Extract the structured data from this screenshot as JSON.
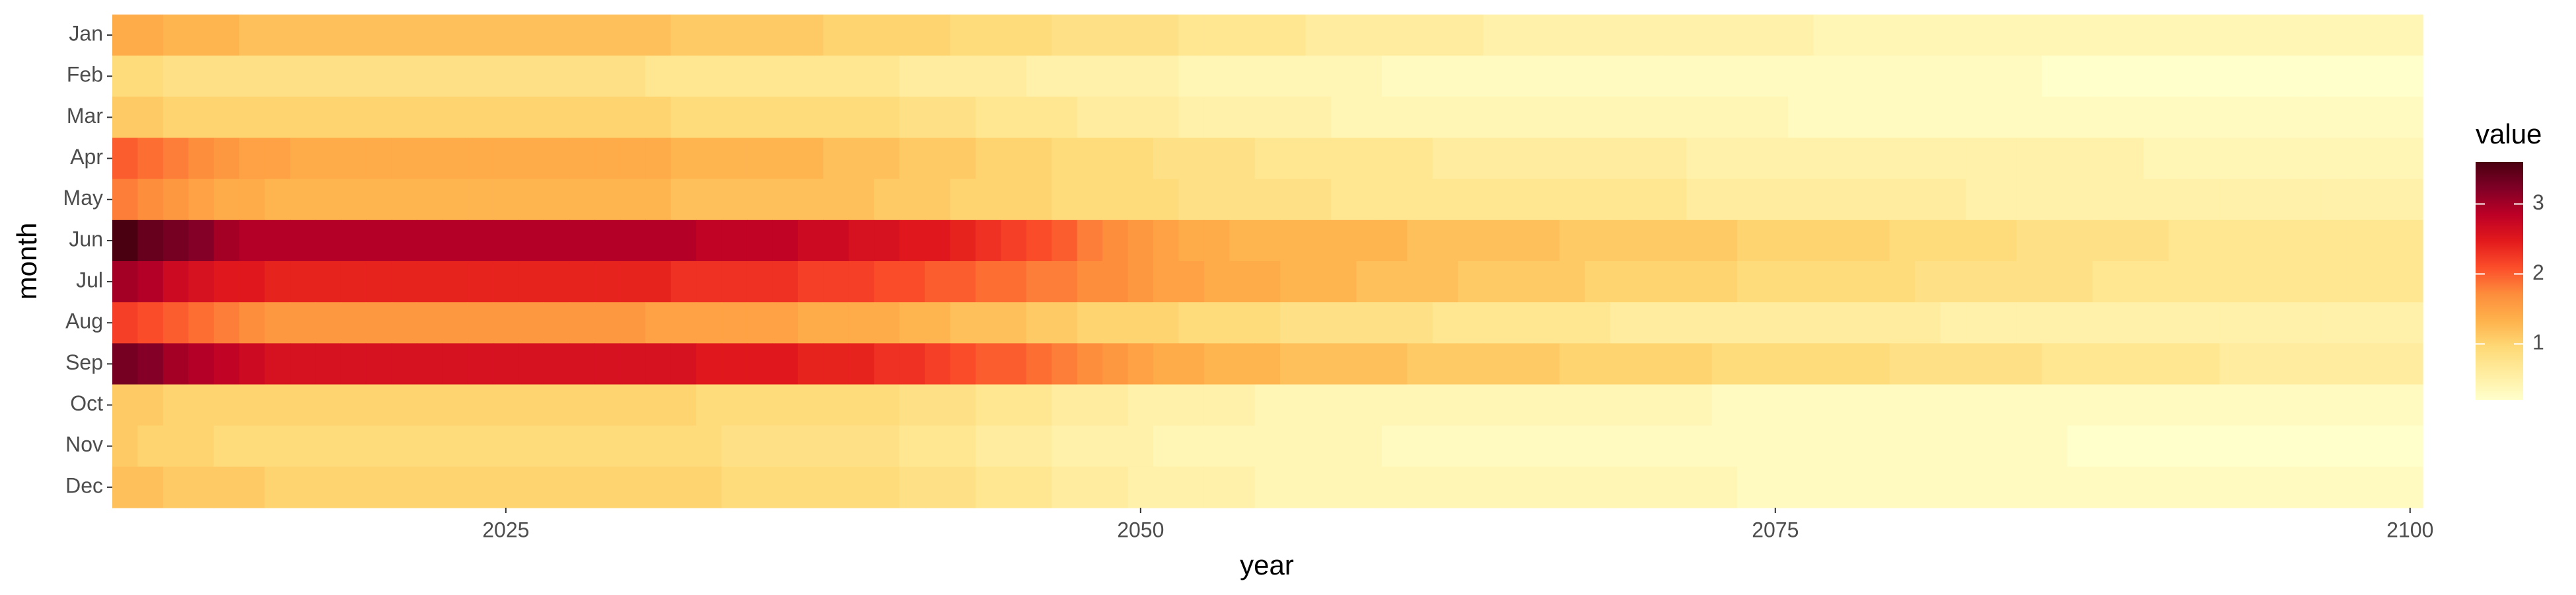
{
  "chart_data": {
    "type": "heatmap",
    "xlabel": "year",
    "ylabel": "month",
    "legend_title": "value",
    "x": [
      2010,
      2011,
      2012,
      2013,
      2014,
      2015,
      2016,
      2017,
      2018,
      2019,
      2020,
      2021,
      2022,
      2023,
      2024,
      2025,
      2026,
      2027,
      2028,
      2029,
      2030,
      2031,
      2032,
      2033,
      2034,
      2035,
      2036,
      2037,
      2038,
      2039,
      2040,
      2041,
      2042,
      2043,
      2044,
      2045,
      2046,
      2047,
      2048,
      2049,
      2050,
      2051,
      2052,
      2053,
      2054,
      2055,
      2056,
      2057,
      2058,
      2059,
      2060,
      2061,
      2062,
      2063,
      2064,
      2065,
      2066,
      2067,
      2068,
      2069,
      2070,
      2071,
      2072,
      2073,
      2074,
      2075,
      2076,
      2077,
      2078,
      2079,
      2080,
      2081,
      2082,
      2083,
      2084,
      2085,
      2086,
      2087,
      2088,
      2089,
      2090,
      2091,
      2092,
      2093,
      2094,
      2095,
      2096,
      2097,
      2098,
      2099,
      2100
    ],
    "categories": [
      "Jan",
      "Feb",
      "Mar",
      "Apr",
      "May",
      "Jun",
      "Jul",
      "Aug",
      "Sep",
      "Oct",
      "Nov",
      "Dec"
    ],
    "values": [
      [
        1.4,
        1.4,
        1.3,
        1.3,
        1.3,
        1.2,
        1.2,
        1.2,
        1.2,
        1.2,
        1.2,
        1.2,
        1.2,
        1.2,
        1.2,
        1.2,
        1.2,
        1.2,
        1.2,
        1.2,
        1.2,
        1.2,
        1.1,
        1.1,
        1.1,
        1.1,
        1.1,
        1.1,
        1.0,
        1.0,
        1.0,
        1.0,
        1.0,
        0.9,
        0.9,
        0.9,
        0.9,
        0.8,
        0.8,
        0.8,
        0.8,
        0.8,
        0.7,
        0.7,
        0.7,
        0.7,
        0.7,
        0.6,
        0.6,
        0.6,
        0.6,
        0.6,
        0.6,
        0.6,
        0.5,
        0.5,
        0.5,
        0.5,
        0.5,
        0.5,
        0.5,
        0.5,
        0.5,
        0.5,
        0.5,
        0.5,
        0.5,
        0.4,
        0.4,
        0.4,
        0.4,
        0.4,
        0.4,
        0.4,
        0.4,
        0.4,
        0.4,
        0.4,
        0.4,
        0.4,
        0.4,
        0.4,
        0.4,
        0.4,
        0.4,
        0.4,
        0.4,
        0.4,
        0.4,
        0.4,
        0.4
      ],
      [
        0.9,
        0.9,
        0.8,
        0.8,
        0.8,
        0.8,
        0.8,
        0.8,
        0.8,
        0.8,
        0.8,
        0.8,
        0.8,
        0.8,
        0.8,
        0.8,
        0.8,
        0.8,
        0.8,
        0.8,
        0.8,
        0.7,
        0.7,
        0.7,
        0.7,
        0.7,
        0.7,
        0.7,
        0.7,
        0.7,
        0.7,
        0.6,
        0.6,
        0.6,
        0.6,
        0.6,
        0.5,
        0.5,
        0.5,
        0.5,
        0.5,
        0.5,
        0.4,
        0.4,
        0.4,
        0.4,
        0.4,
        0.4,
        0.4,
        0.4,
        0.3,
        0.3,
        0.3,
        0.3,
        0.3,
        0.3,
        0.3,
        0.3,
        0.3,
        0.3,
        0.3,
        0.3,
        0.3,
        0.3,
        0.3,
        0.3,
        0.3,
        0.3,
        0.3,
        0.3,
        0.3,
        0.3,
        0.3,
        0.3,
        0.3,
        0.3,
        0.2,
        0.2,
        0.2,
        0.2,
        0.2,
        0.2,
        0.2,
        0.2,
        0.2,
        0.2,
        0.2,
        0.2,
        0.2,
        0.2,
        0.2
      ],
      [
        1.1,
        1.1,
        1.0,
        1.0,
        1.0,
        1.0,
        1.0,
        1.0,
        1.0,
        1.0,
        1.0,
        1.0,
        1.0,
        1.0,
        1.0,
        1.0,
        1.0,
        1.0,
        1.0,
        1.0,
        1.0,
        1.0,
        0.9,
        0.9,
        0.9,
        0.9,
        0.9,
        0.9,
        0.9,
        0.9,
        0.9,
        0.8,
        0.8,
        0.8,
        0.7,
        0.7,
        0.7,
        0.7,
        0.6,
        0.6,
        0.6,
        0.6,
        0.5,
        0.5,
        0.5,
        0.5,
        0.5,
        0.5,
        0.4,
        0.4,
        0.4,
        0.4,
        0.4,
        0.4,
        0.4,
        0.4,
        0.4,
        0.4,
        0.4,
        0.4,
        0.4,
        0.4,
        0.4,
        0.4,
        0.4,
        0.4,
        0.3,
        0.3,
        0.3,
        0.3,
        0.3,
        0.3,
        0.3,
        0.3,
        0.3,
        0.3,
        0.3,
        0.3,
        0.3,
        0.3,
        0.3,
        0.3,
        0.3,
        0.3,
        0.3,
        0.3,
        0.3,
        0.3,
        0.3,
        0.3,
        0.3
      ],
      [
        2.0,
        1.9,
        1.8,
        1.7,
        1.6,
        1.5,
        1.5,
        1.4,
        1.4,
        1.4,
        1.4,
        1.4,
        1.4,
        1.4,
        1.4,
        1.4,
        1.4,
        1.4,
        1.4,
        1.4,
        1.4,
        1.4,
        1.3,
        1.3,
        1.3,
        1.3,
        1.3,
        1.3,
        1.2,
        1.2,
        1.2,
        1.1,
        1.1,
        1.1,
        1.0,
        1.0,
        1.0,
        0.9,
        0.9,
        0.9,
        0.9,
        0.8,
        0.8,
        0.8,
        0.8,
        0.7,
        0.7,
        0.7,
        0.7,
        0.7,
        0.7,
        0.7,
        0.6,
        0.6,
        0.6,
        0.6,
        0.6,
        0.6,
        0.6,
        0.6,
        0.6,
        0.6,
        0.5,
        0.5,
        0.5,
        0.5,
        0.5,
        0.5,
        0.5,
        0.5,
        0.5,
        0.5,
        0.5,
        0.5,
        0.5,
        0.5,
        0.5,
        0.5,
        0.5,
        0.5,
        0.4,
        0.4,
        0.4,
        0.4,
        0.4,
        0.4,
        0.4,
        0.4,
        0.4,
        0.4,
        0.4
      ],
      [
        1.8,
        1.7,
        1.6,
        1.5,
        1.4,
        1.4,
        1.3,
        1.3,
        1.3,
        1.3,
        1.3,
        1.3,
        1.3,
        1.3,
        1.3,
        1.3,
        1.3,
        1.3,
        1.3,
        1.3,
        1.3,
        1.3,
        1.2,
        1.2,
        1.2,
        1.2,
        1.2,
        1.2,
        1.2,
        1.2,
        1.1,
        1.1,
        1.1,
        1.0,
        1.0,
        1.0,
        1.0,
        0.9,
        0.9,
        0.9,
        0.9,
        0.9,
        0.8,
        0.8,
        0.8,
        0.8,
        0.8,
        0.8,
        0.7,
        0.7,
        0.7,
        0.7,
        0.7,
        0.7,
        0.7,
        0.7,
        0.7,
        0.7,
        0.7,
        0.7,
        0.7,
        0.7,
        0.6,
        0.6,
        0.6,
        0.6,
        0.6,
        0.6,
        0.6,
        0.6,
        0.6,
        0.6,
        0.6,
        0.5,
        0.5,
        0.5,
        0.5,
        0.5,
        0.5,
        0.5,
        0.5,
        0.5,
        0.5,
        0.5,
        0.5,
        0.5,
        0.5,
        0.5,
        0.5,
        0.5,
        0.5
      ],
      [
        3.6,
        3.4,
        3.3,
        3.2,
        3.0,
        2.9,
        2.9,
        2.9,
        2.9,
        2.9,
        2.9,
        2.9,
        2.9,
        2.9,
        2.9,
        2.9,
        2.9,
        2.9,
        2.9,
        2.9,
        2.9,
        2.9,
        2.9,
        2.8,
        2.8,
        2.8,
        2.8,
        2.7,
        2.7,
        2.6,
        2.6,
        2.5,
        2.5,
        2.4,
        2.3,
        2.2,
        2.1,
        2.0,
        1.8,
        1.7,
        1.6,
        1.5,
        1.4,
        1.4,
        1.3,
        1.3,
        1.3,
        1.3,
        1.3,
        1.3,
        1.3,
        1.2,
        1.2,
        1.2,
        1.2,
        1.2,
        1.2,
        1.1,
        1.1,
        1.1,
        1.1,
        1.1,
        1.1,
        1.1,
        1.0,
        1.0,
        1.0,
        1.0,
        1.0,
        1.0,
        0.9,
        0.9,
        0.9,
        0.9,
        0.9,
        0.8,
        0.8,
        0.8,
        0.8,
        0.8,
        0.8,
        0.7,
        0.7,
        0.7,
        0.7,
        0.7,
        0.7,
        0.7,
        0.7,
        0.7,
        0.7
      ],
      [
        3.0,
        2.9,
        2.7,
        2.6,
        2.5,
        2.5,
        2.4,
        2.4,
        2.4,
        2.4,
        2.4,
        2.4,
        2.4,
        2.4,
        2.4,
        2.4,
        2.4,
        2.4,
        2.4,
        2.4,
        2.4,
        2.4,
        2.3,
        2.3,
        2.3,
        2.3,
        2.3,
        2.2,
        2.2,
        2.2,
        2.1,
        2.1,
        2.0,
        2.0,
        1.9,
        1.9,
        1.8,
        1.8,
        1.7,
        1.7,
        1.6,
        1.5,
        1.5,
        1.4,
        1.4,
        1.4,
        1.3,
        1.3,
        1.3,
        1.2,
        1.2,
        1.2,
        1.2,
        1.1,
        1.1,
        1.1,
        1.1,
        1.1,
        1.0,
        1.0,
        1.0,
        1.0,
        1.0,
        1.0,
        0.9,
        0.9,
        0.9,
        0.9,
        0.9,
        0.9,
        0.9,
        0.8,
        0.8,
        0.8,
        0.8,
        0.8,
        0.8,
        0.8,
        0.7,
        0.7,
        0.7,
        0.7,
        0.7,
        0.7,
        0.7,
        0.7,
        0.7,
        0.7,
        0.7,
        0.7,
        0.7
      ],
      [
        2.2,
        2.1,
        2.0,
        1.9,
        1.8,
        1.7,
        1.6,
        1.6,
        1.6,
        1.6,
        1.6,
        1.6,
        1.6,
        1.6,
        1.6,
        1.6,
        1.6,
        1.6,
        1.6,
        1.6,
        1.6,
        1.5,
        1.5,
        1.5,
        1.5,
        1.5,
        1.5,
        1.4,
        1.4,
        1.4,
        1.4,
        1.3,
        1.3,
        1.2,
        1.2,
        1.2,
        1.1,
        1.1,
        1.0,
        1.0,
        1.0,
        1.0,
        0.9,
        0.9,
        0.9,
        0.9,
        0.8,
        0.8,
        0.8,
        0.8,
        0.8,
        0.8,
        0.7,
        0.7,
        0.7,
        0.7,
        0.7,
        0.7,
        0.7,
        0.6,
        0.6,
        0.6,
        0.6,
        0.6,
        0.6,
        0.6,
        0.6,
        0.6,
        0.6,
        0.6,
        0.6,
        0.6,
        0.5,
        0.5,
        0.5,
        0.5,
        0.5,
        0.5,
        0.5,
        0.5,
        0.5,
        0.5,
        0.5,
        0.5,
        0.5,
        0.5,
        0.5,
        0.5,
        0.5,
        0.5,
        0.5
      ],
      [
        3.3,
        3.2,
        3.0,
        2.9,
        2.8,
        2.7,
        2.6,
        2.6,
        2.6,
        2.6,
        2.6,
        2.6,
        2.6,
        2.6,
        2.6,
        2.6,
        2.6,
        2.6,
        2.6,
        2.6,
        2.6,
        2.6,
        2.6,
        2.5,
        2.5,
        2.5,
        2.5,
        2.4,
        2.4,
        2.4,
        2.3,
        2.3,
        2.2,
        2.1,
        2.0,
        2.0,
        1.9,
        1.8,
        1.7,
        1.6,
        1.5,
        1.4,
        1.4,
        1.3,
        1.3,
        1.3,
        1.2,
        1.2,
        1.2,
        1.2,
        1.2,
        1.1,
        1.1,
        1.1,
        1.1,
        1.1,
        1.1,
        1.0,
        1.0,
        1.0,
        1.0,
        1.0,
        1.0,
        0.9,
        0.9,
        0.9,
        0.9,
        0.9,
        0.9,
        0.9,
        0.8,
        0.8,
        0.8,
        0.8,
        0.8,
        0.8,
        0.7,
        0.7,
        0.7,
        0.7,
        0.7,
        0.7,
        0.7,
        0.6,
        0.6,
        0.6,
        0.6,
        0.6,
        0.6,
        0.6,
        0.6
      ],
      [
        1.1,
        1.1,
        1.0,
        1.0,
        1.0,
        1.0,
        1.0,
        1.0,
        1.0,
        1.0,
        1.0,
        1.0,
        1.0,
        1.0,
        1.0,
        1.0,
        1.0,
        1.0,
        1.0,
        1.0,
        1.0,
        1.0,
        1.0,
        0.9,
        0.9,
        0.9,
        0.9,
        0.9,
        0.9,
        0.9,
        0.9,
        0.8,
        0.8,
        0.8,
        0.7,
        0.7,
        0.7,
        0.6,
        0.6,
        0.6,
        0.5,
        0.5,
        0.5,
        0.5,
        0.5,
        0.4,
        0.4,
        0.4,
        0.4,
        0.4,
        0.4,
        0.4,
        0.4,
        0.4,
        0.4,
        0.4,
        0.4,
        0.4,
        0.4,
        0.4,
        0.4,
        0.4,
        0.4,
        0.3,
        0.3,
        0.3,
        0.3,
        0.3,
        0.3,
        0.3,
        0.3,
        0.3,
        0.3,
        0.3,
        0.3,
        0.3,
        0.3,
        0.3,
        0.3,
        0.3,
        0.3,
        0.3,
        0.3,
        0.3,
        0.3,
        0.3,
        0.3,
        0.3,
        0.3,
        0.3,
        0.3
      ],
      [
        1.1,
        1.0,
        1.0,
        1.0,
        0.9,
        0.9,
        0.9,
        0.9,
        0.9,
        0.9,
        0.9,
        0.9,
        0.9,
        0.9,
        0.9,
        0.9,
        0.9,
        0.9,
        0.9,
        0.9,
        0.9,
        0.9,
        0.9,
        0.9,
        0.8,
        0.8,
        0.8,
        0.8,
        0.8,
        0.8,
        0.8,
        0.7,
        0.7,
        0.7,
        0.6,
        0.6,
        0.6,
        0.5,
        0.5,
        0.5,
        0.5,
        0.4,
        0.4,
        0.4,
        0.4,
        0.4,
        0.4,
        0.4,
        0.4,
        0.4,
        0.3,
        0.3,
        0.3,
        0.3,
        0.3,
        0.3,
        0.3,
        0.3,
        0.3,
        0.3,
        0.3,
        0.3,
        0.3,
        0.3,
        0.3,
        0.3,
        0.3,
        0.3,
        0.3,
        0.3,
        0.3,
        0.3,
        0.3,
        0.3,
        0.3,
        0.3,
        0.3,
        0.2,
        0.2,
        0.2,
        0.2,
        0.2,
        0.2,
        0.2,
        0.2,
        0.2,
        0.2,
        0.2,
        0.2,
        0.2,
        0.2
      ],
      [
        1.2,
        1.2,
        1.1,
        1.1,
        1.1,
        1.1,
        1.0,
        1.0,
        1.0,
        1.0,
        1.0,
        1.0,
        1.0,
        1.0,
        1.0,
        1.0,
        1.0,
        1.0,
        1.0,
        1.0,
        1.0,
        1.0,
        1.0,
        1.0,
        0.9,
        0.9,
        0.9,
        0.9,
        0.9,
        0.9,
        0.9,
        0.8,
        0.8,
        0.8,
        0.7,
        0.7,
        0.7,
        0.6,
        0.6,
        0.6,
        0.5,
        0.5,
        0.5,
        0.5,
        0.5,
        0.4,
        0.4,
        0.4,
        0.4,
        0.4,
        0.4,
        0.4,
        0.4,
        0.4,
        0.4,
        0.4,
        0.4,
        0.4,
        0.4,
        0.4,
        0.4,
        0.4,
        0.4,
        0.4,
        0.3,
        0.3,
        0.3,
        0.3,
        0.3,
        0.3,
        0.3,
        0.3,
        0.3,
        0.3,
        0.3,
        0.3,
        0.3,
        0.3,
        0.3,
        0.3,
        0.3,
        0.3,
        0.3,
        0.3,
        0.3,
        0.3,
        0.3,
        0.3,
        0.3,
        0.3,
        0.3
      ]
    ],
    "xlim": [
      2009.5,
      2100.5
    ],
    "xticks": [
      2025,
      2050,
      2075,
      2100
    ],
    "colorbar_lim": [
      0.2,
      3.6
    ],
    "colorbar_ticks": [
      1,
      2,
      3
    ],
    "colors": [
      "#ffffcc",
      "#ffeda0",
      "#fed976",
      "#feb24c",
      "#fd8d3c",
      "#fc4e2a",
      "#e31a1c",
      "#bd0026",
      "#800026",
      "#4a0010"
    ]
  }
}
